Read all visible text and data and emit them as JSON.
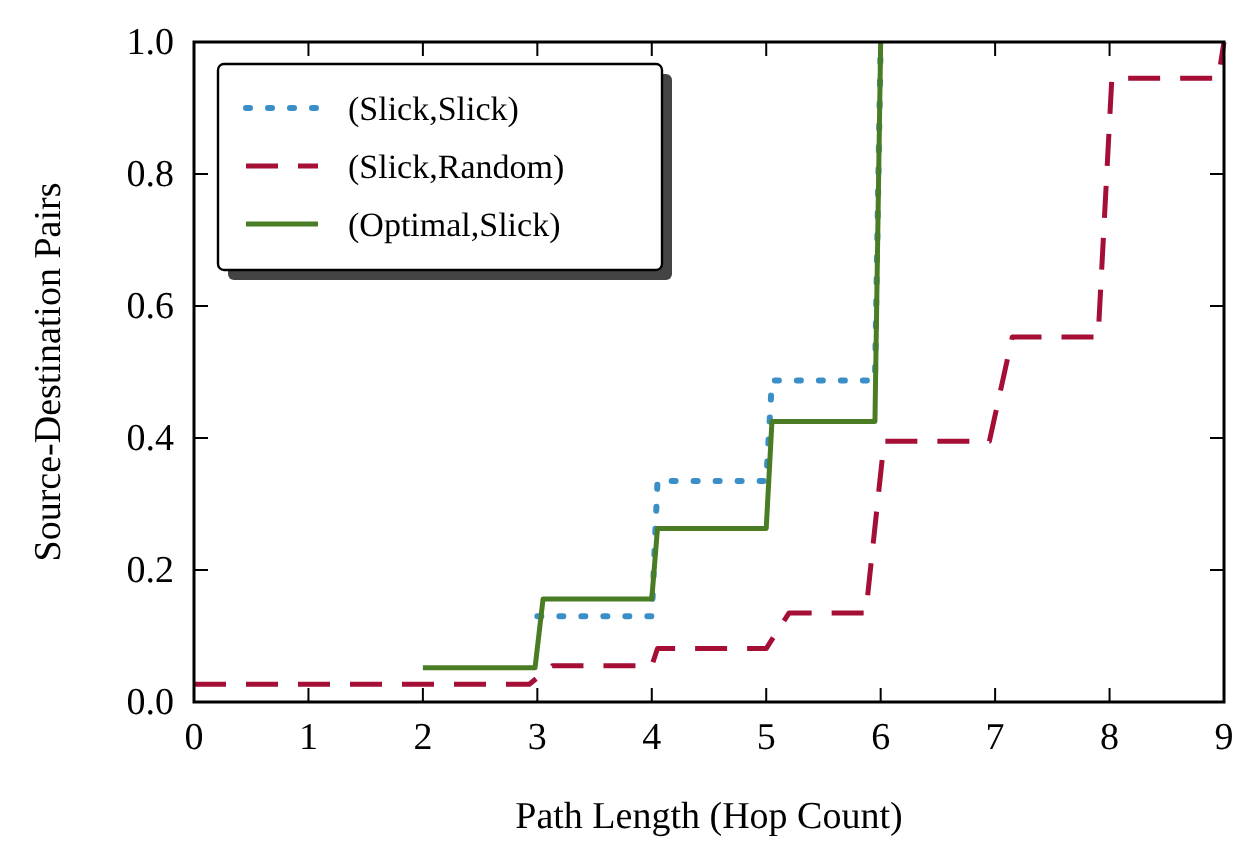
{
  "chart_data": {
    "type": "line",
    "xlabel": "Path Length (Hop Count)",
    "ylabel": "Source-Destination Pairs",
    "xlim": [
      0,
      9
    ],
    "xticks": [
      0,
      1,
      2,
      3,
      4,
      5,
      6,
      7,
      8,
      9
    ],
    "ylim": [
      0,
      1
    ],
    "yticks": [
      {
        "value": 0,
        "label": "0.0"
      },
      0.2,
      0.4,
      0.6,
      0.8,
      {
        "value": 1,
        "label": "1.0"
      }
    ],
    "grid": false,
    "legend": "top left",
    "series": [
      {
        "name": "(Slick,Slick)",
        "color": "#3a8fc7",
        "line_style": "dotted",
        "x": [
          3,
          3.05,
          4,
          4.05,
          5,
          5.05,
          5.95,
          6
        ],
        "values": [
          0.13,
          0.13,
          0.13,
          0.335,
          0.335,
          0.487,
          0.487,
          1.0
        ]
      },
      {
        "name": "(Slick,Random)",
        "color": "#a50f35",
        "line_style": "dashed",
        "x": [
          0,
          2.93,
          3.13,
          4,
          4.05,
          5,
          5.2,
          5.87,
          6.03,
          6.95,
          7.15,
          7.9,
          8.02,
          8.95,
          9
        ],
        "values": [
          0.027,
          0.027,
          0.055,
          0.055,
          0.081,
          0.081,
          0.135,
          0.135,
          0.395,
          0.395,
          0.553,
          0.553,
          0.945,
          0.945,
          1.0
        ]
      },
      {
        "name": "(Optimal,Slick)",
        "color": "#4a7d23",
        "line_style": "solid",
        "x": [
          2,
          2.98,
          3.05,
          4,
          4.05,
          5,
          5.05,
          5.95,
          6
        ],
        "values": [
          0.052,
          0.052,
          0.156,
          0.156,
          0.263,
          0.263,
          0.425,
          0.425,
          1.0
        ]
      }
    ]
  }
}
